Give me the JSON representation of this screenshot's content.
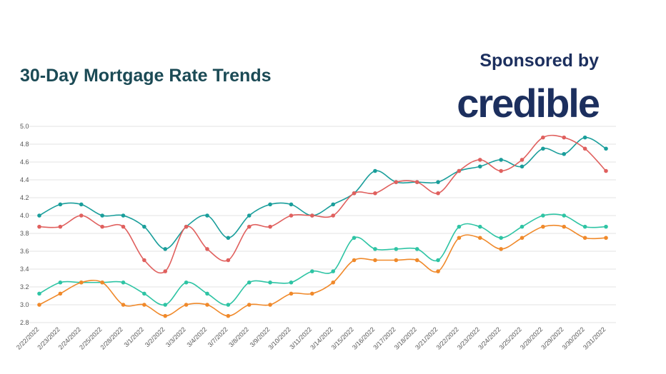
{
  "chart_data": {
    "type": "line",
    "title": "30-Day Mortgage Rate Trends",
    "sponsor_label": "Sponsored by",
    "sponsor": "credible",
    "categories": [
      "2/22/2022",
      "2/23/2022",
      "2/24/2022",
      "2/25/2022",
      "2/28/2022",
      "3/1/2022",
      "3/2/2022",
      "3/3/2022",
      "3/4/2022",
      "3/7/2022",
      "3/8/2022",
      "3/9/2022",
      "3/10/2022",
      "3/11/2022",
      "3/14/2022",
      "3/15/2022",
      "3/16/2022",
      "3/17/2022",
      "3/18/2022",
      "3/21/2022",
      "3/22/2022",
      "3/23/2022",
      "3/24/2022",
      "3/25/2022",
      "3/28/2022",
      "3/29/2022",
      "3/30/2022",
      "3/31/2022"
    ],
    "series": [
      {
        "color": "#1a9e9b",
        "values": [
          4.0,
          4.125,
          4.125,
          4.0,
          4.0,
          3.875,
          3.625,
          3.875,
          4.0,
          3.75,
          4.0,
          4.125,
          4.125,
          4.0,
          4.125,
          4.25,
          4.5,
          4.375,
          4.375,
          4.375,
          4.5,
          4.55,
          4.625,
          4.55,
          4.75,
          4.69,
          4.875,
          4.75
        ]
      },
      {
        "color": "#e0605e",
        "values": [
          3.875,
          3.875,
          4.0,
          3.875,
          3.875,
          3.5,
          3.375,
          3.875,
          3.625,
          3.5,
          3.875,
          3.875,
          4.0,
          4.0,
          4.0,
          4.25,
          4.25,
          4.375,
          4.375,
          4.25,
          4.5,
          4.625,
          4.5,
          4.625,
          4.875,
          4.875,
          4.75,
          4.5
        ]
      },
      {
        "color": "#2ec4a4",
        "values": [
          3.125,
          3.25,
          3.25,
          3.25,
          3.25,
          3.125,
          3.0,
          3.25,
          3.125,
          3.0,
          3.25,
          3.25,
          3.25,
          3.375,
          3.375,
          3.75,
          3.625,
          3.625,
          3.625,
          3.5,
          3.875,
          3.875,
          3.75,
          3.875,
          4.0,
          4.0,
          3.875,
          3.875
        ]
      },
      {
        "color": "#f0892a",
        "values": [
          3.0,
          3.125,
          3.25,
          3.25,
          3.0,
          3.0,
          2.875,
          3.0,
          3.0,
          2.875,
          3.0,
          3.0,
          3.125,
          3.125,
          3.25,
          3.5,
          3.5,
          3.5,
          3.5,
          3.375,
          3.75,
          3.75,
          3.625,
          3.75,
          3.875,
          3.875,
          3.75,
          3.75
        ]
      }
    ],
    "ylim": [
      2.8,
      5.0
    ],
    "yticks": [
      2.8,
      {
        "value": 3,
        "label": "3.0"
      },
      3.2,
      3.4,
      3.6,
      3.8,
      {
        "value": 4,
        "label": "4.0"
      },
      4.2,
      4.4,
      4.6,
      4.8,
      {
        "value": 5,
        "label": "5.0"
      }
    ],
    "grid": true
  }
}
